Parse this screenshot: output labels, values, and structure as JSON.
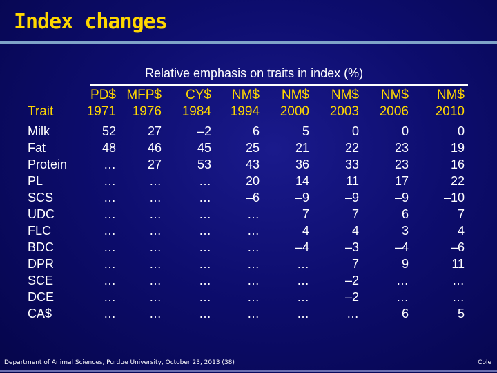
{
  "title": "Index changes",
  "subtitle": "Relative emphasis on traits in index (%)",
  "trait_header": "Trait",
  "columns": [
    {
      "name": "PD$",
      "year": "1971"
    },
    {
      "name": "MFP$",
      "year": "1976"
    },
    {
      "name": "CY$",
      "year": "1984"
    },
    {
      "name": "NM$",
      "year": "1994"
    },
    {
      "name": "NM$",
      "year": "2000"
    },
    {
      "name": "NM$",
      "year": "2003"
    },
    {
      "name": "NM$",
      "year": "2006"
    },
    {
      "name": "NM$",
      "year": "2010"
    }
  ],
  "rows": [
    {
      "trait": "Milk",
      "values": [
        "52",
        "27",
        "–2",
        "6",
        "5",
        "0",
        "0",
        "0"
      ]
    },
    {
      "trait": "Fat",
      "values": [
        "48",
        "46",
        "45",
        "25",
        "21",
        "22",
        "23",
        "19"
      ]
    },
    {
      "trait": "Protein",
      "values": [
        "…",
        "27",
        "53",
        "43",
        "36",
        "33",
        "23",
        "16"
      ]
    },
    {
      "trait": "PL",
      "values": [
        "…",
        "…",
        "…",
        "20",
        "14",
        "11",
        "17",
        "22"
      ]
    },
    {
      "trait": "SCS",
      "values": [
        "…",
        "…",
        "…",
        "–6",
        "–9",
        "–9",
        "–9",
        "–10"
      ]
    },
    {
      "trait": "UDC",
      "values": [
        "…",
        "…",
        "…",
        "…",
        "7",
        "7",
        "6",
        "7"
      ]
    },
    {
      "trait": "FLC",
      "values": [
        "…",
        "…",
        "…",
        "…",
        "4",
        "4",
        "3",
        "4"
      ]
    },
    {
      "trait": "BDC",
      "values": [
        "…",
        "…",
        "…",
        "…",
        "–4",
        "–3",
        "–4",
        "–6"
      ]
    },
    {
      "trait": "DPR",
      "values": [
        "…",
        "…",
        "…",
        "…",
        "…",
        "7",
        "9",
        "11"
      ]
    },
    {
      "trait": "SCE",
      "values": [
        "…",
        "…",
        "…",
        "…",
        "…",
        "–2",
        "…",
        "…"
      ]
    },
    {
      "trait": "DCE",
      "values": [
        "…",
        "…",
        "…",
        "…",
        "…",
        "–2",
        "…",
        "…"
      ]
    },
    {
      "trait": "CA$",
      "values": [
        "…",
        "…",
        "…",
        "…",
        "…",
        "…",
        "6",
        "5"
      ]
    }
  ],
  "footer": "Department of Animal Sciences, Purdue University, October 23, 2013 (38)",
  "author": "Cole",
  "colors": {
    "accent": "#ffd700",
    "background": "#0d0d6e",
    "text": "#ffffff"
  }
}
